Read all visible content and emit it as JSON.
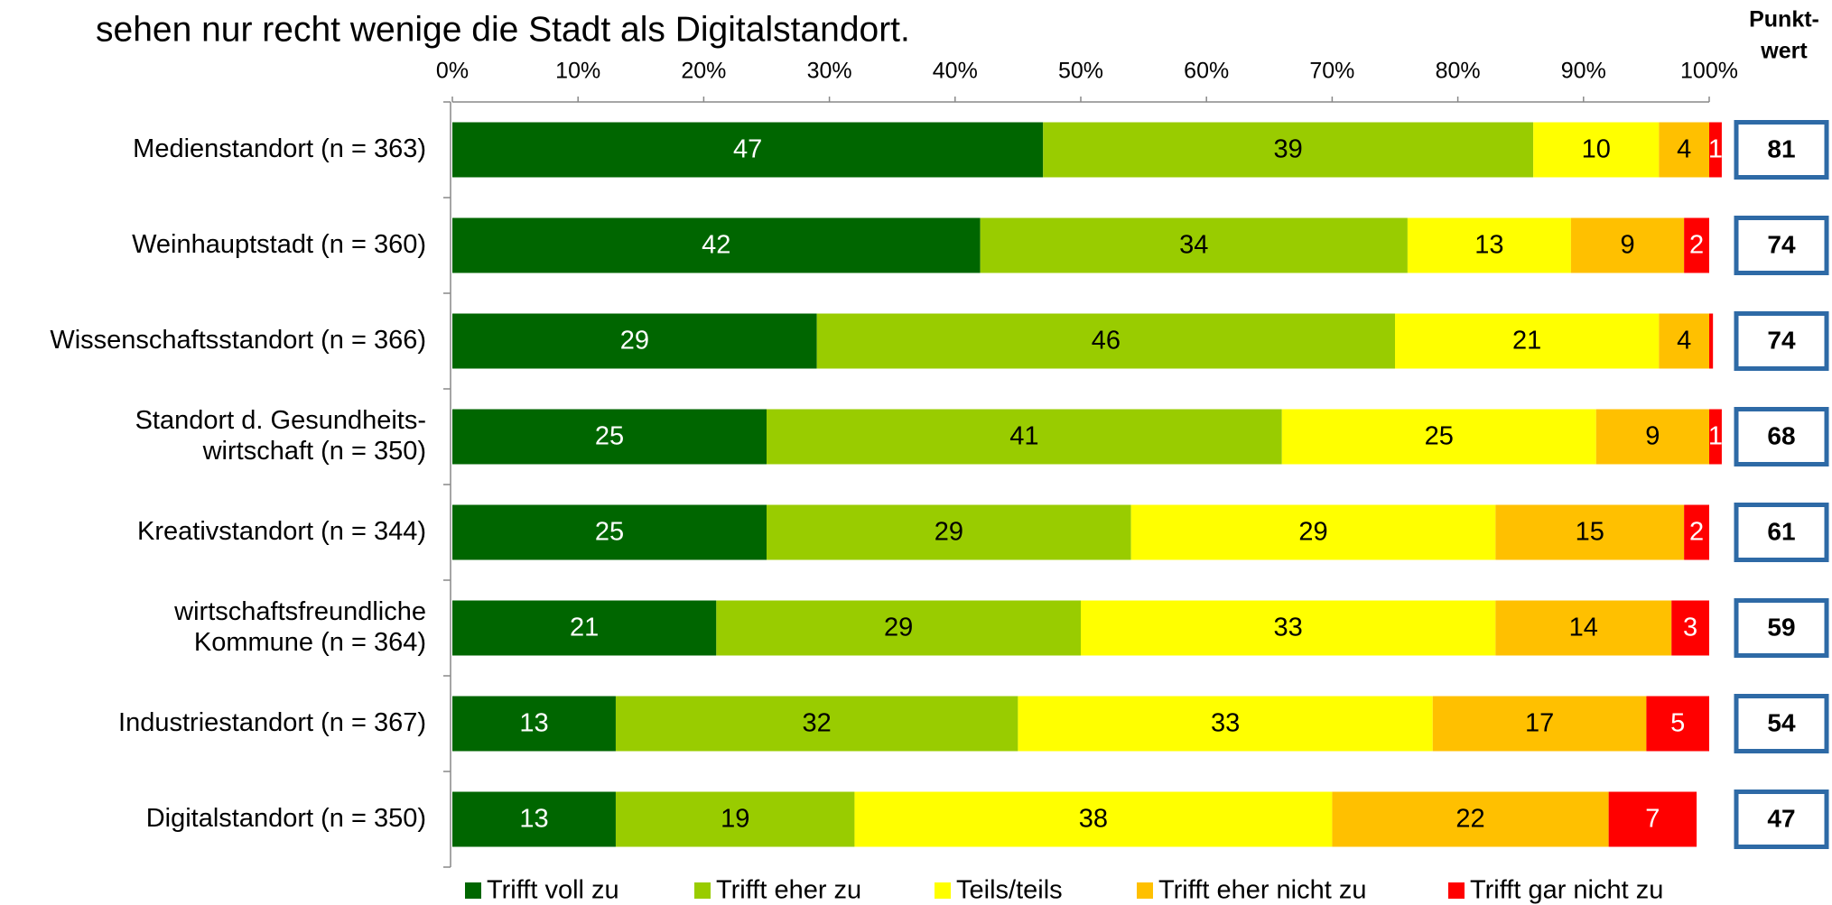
{
  "chart_data": {
    "type": "stacked_bar_horizontal",
    "title": "sehen nur recht wenige die Stadt als Digitalstandort.",
    "categories": [
      [
        "Medienstandort (n = 363)"
      ],
      [
        "Weinhauptstadt (n = 360)"
      ],
      [
        "Wissenschaftsstandort (n = 366)"
      ],
      [
        "Standort d. Gesundheits-",
        "wirtschaft (n = 350)"
      ],
      [
        "Kreativstandort (n = 344)"
      ],
      [
        "wirtschaftsfreundliche",
        "Kommune (n = 364)"
      ],
      [
        "Industriestandort (n = 367)"
      ],
      [
        "Digitalstandort (n = 350)"
      ]
    ],
    "series": [
      {
        "name": "Trifft voll zu",
        "color": "#006600",
        "text_color": "#ffffff",
        "values": [
          47,
          42,
          29,
          25,
          25,
          21,
          13,
          13
        ]
      },
      {
        "name": "Trifft eher zu",
        "color": "#99cc00",
        "text_color": "#000000",
        "values": [
          39,
          34,
          46,
          41,
          29,
          29,
          32,
          19
        ]
      },
      {
        "name": "Teils/teils",
        "color": "#ffff00",
        "text_color": "#000000",
        "values": [
          10,
          13,
          21,
          25,
          29,
          33,
          33,
          38
        ]
      },
      {
        "name": "Trifft eher nicht zu",
        "color": "#ffc000",
        "text_color": "#000000",
        "values": [
          4,
          9,
          4,
          9,
          15,
          14,
          17,
          22
        ]
      },
      {
        "name": "Trifft gar nicht zu",
        "color": "#ff0000",
        "text_color": "#ffffff",
        "values": [
          1,
          2,
          0.3,
          1,
          2,
          3,
          5,
          7
        ],
        "value_labels": [
          "1",
          "2",
          null,
          "1",
          "2",
          "3",
          "5",
          "7"
        ]
      }
    ],
    "xlim": [
      0,
      100
    ],
    "xticks": [
      {
        "value": 0,
        "label": "0%"
      },
      {
        "value": 10,
        "label": "10%"
      },
      {
        "value": 20,
        "label": "20%"
      },
      {
        "value": 30,
        "label": "30%"
      },
      {
        "value": 40,
        "label": "40%"
      },
      {
        "value": 50,
        "label": "50%"
      },
      {
        "value": 60,
        "label": "60%"
      },
      {
        "value": 70,
        "label": "70%"
      },
      {
        "value": 80,
        "label": "80%"
      },
      {
        "value": 90,
        "label": "90%"
      },
      {
        "value": 100,
        "label": "100%"
      }
    ],
    "score_header": [
      "Punkt-",
      "wert"
    ],
    "scores": [
      81,
      74,
      74,
      68,
      61,
      59,
      54,
      47
    ],
    "score_box_color": "#2e6aa6"
  }
}
